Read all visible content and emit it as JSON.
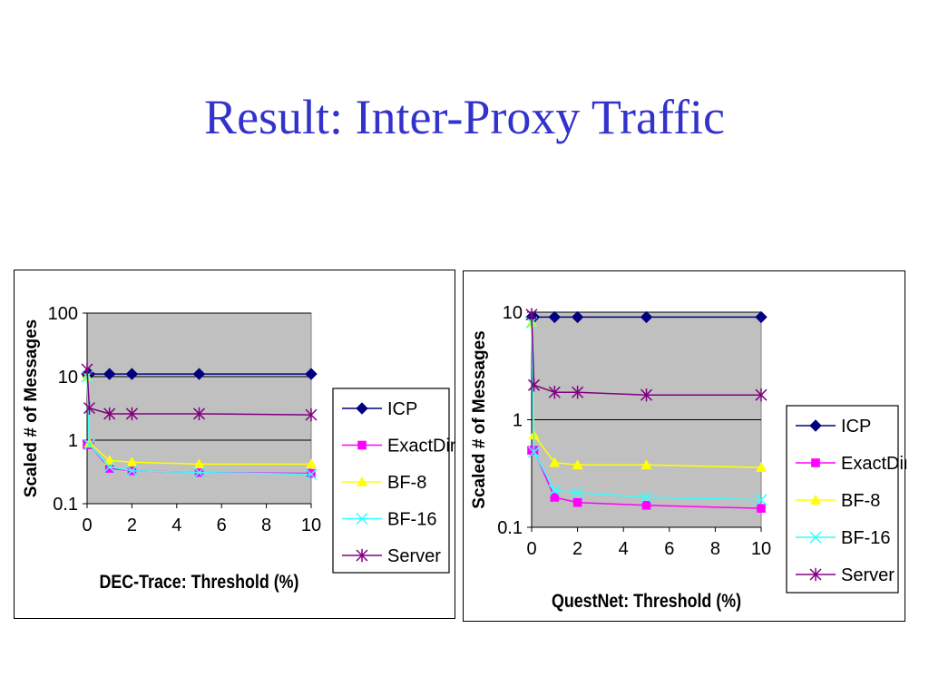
{
  "slide": {
    "title": "Result: Inter-Proxy Traffic"
  },
  "colors": {
    "ICP": "#000080",
    "ExactDir": "#ff00ff",
    "BF-8": "#ffff00",
    "BF-16": "#33ffff",
    "Server": "#800080",
    "plot_bg": "#c0c0c0"
  },
  "chart_data": [
    {
      "type": "line",
      "xlabel": "DEC-Trace: Threshold (%)",
      "ylabel": "Scaled # of Messages",
      "yscale": "log",
      "ylim": [
        0.1,
        100
      ],
      "xlim": [
        0,
        10
      ],
      "xticks": [
        0,
        2,
        4,
        6,
        8,
        10
      ],
      "yticks": [
        0.1,
        1,
        10,
        100
      ],
      "ytick_labels": [
        "0.1",
        "1",
        "10",
        "100"
      ],
      "grid": "horizontal at major ticks",
      "legend_position": "right",
      "x": [
        0,
        0.1,
        1,
        2,
        5,
        10
      ],
      "series": [
        {
          "name": "ICP",
          "marker": "diamond",
          "values": [
            11,
            11,
            11,
            11,
            11,
            11
          ]
        },
        {
          "name": "ExactDir",
          "marker": "square",
          "values": [
            0.85,
            0.85,
            0.36,
            0.33,
            0.31,
            0.3
          ]
        },
        {
          "name": "BF-8",
          "marker": "triangle",
          "values": [
            10,
            0.9,
            0.48,
            0.45,
            0.42,
            0.42
          ]
        },
        {
          "name": "BF-16",
          "marker": "x",
          "values": [
            10,
            0.85,
            0.38,
            0.33,
            0.31,
            0.29
          ]
        },
        {
          "name": "Server",
          "marker": "star",
          "values": [
            13,
            3.2,
            2.6,
            2.6,
            2.6,
            2.5
          ]
        }
      ]
    },
    {
      "type": "line",
      "xlabel": "QuestNet: Threshold (%)",
      "ylabel": "Scaled # of Messages",
      "yscale": "log",
      "ylim": [
        0.1,
        10
      ],
      "xlim": [
        0,
        10
      ],
      "xticks": [
        0,
        2,
        4,
        6,
        8,
        10
      ],
      "yticks": [
        0.1,
        1,
        10
      ],
      "ytick_labels": [
        "0.1",
        "1",
        "10"
      ],
      "grid": "horizontal at major ticks",
      "legend_position": "right",
      "x": [
        0,
        0.1,
        1,
        2,
        5,
        10
      ],
      "series": [
        {
          "name": "ICP",
          "marker": "diamond",
          "values": [
            9,
            9,
            9,
            9,
            9,
            9
          ]
        },
        {
          "name": "ExactDir",
          "marker": "square",
          "values": [
            0.52,
            0.52,
            0.19,
            0.17,
            0.16,
            0.15
          ]
        },
        {
          "name": "BF-8",
          "marker": "triangle",
          "values": [
            8,
            0.72,
            0.4,
            0.38,
            0.38,
            0.36
          ]
        },
        {
          "name": "BF-16",
          "marker": "x",
          "values": [
            8,
            0.5,
            0.22,
            0.21,
            0.19,
            0.18
          ]
        },
        {
          "name": "Server",
          "marker": "star",
          "values": [
            9.5,
            2.1,
            1.8,
            1.8,
            1.7,
            1.7
          ]
        }
      ]
    }
  ]
}
